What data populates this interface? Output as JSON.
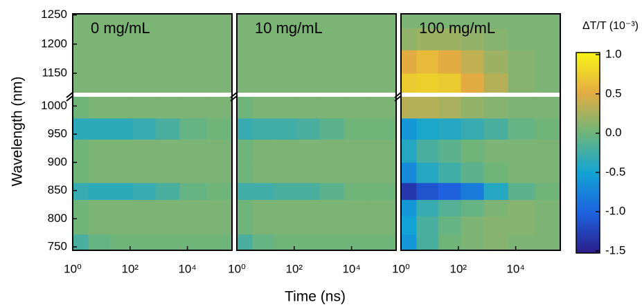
{
  "chart_data": {
    "type": "heatmap",
    "x_label": "Time (ns)",
    "y_label": "Wavelength (nm)",
    "colorbar_label": "ΔT/T (10⁻³)",
    "log_x": true,
    "xlim": [
      1,
      360000
    ],
    "xticks": [
      {
        "value": 1,
        "label": "10⁰"
      },
      {
        "value": 100,
        "label": "10²"
      },
      {
        "value": 10000,
        "label": "10⁴"
      }
    ],
    "ylim_lower": [
      744,
      1020
    ],
    "ylim_upper": [
      1113,
      1252
    ],
    "yticks": [
      750,
      800,
      850,
      900,
      950,
      1000,
      1150,
      1200,
      1250
    ],
    "clim": [
      -1.5,
      1.0
    ],
    "cticks": [
      {
        "value": 1,
        "label": "1.0"
      },
      0.5,
      {
        "value": 0,
        "label": "0.0"
      },
      -0.5,
      {
        "value": -1,
        "label": "-1.0"
      },
      -1.5
    ],
    "colormap": [
      "#2a1e8a",
      "#1e62e0",
      "#12a4d4",
      "#6fb57a",
      "#e3ac42",
      "#f8f415"
    ],
    "x": [
      1.5,
      8,
      50,
      300,
      2000,
      15000,
      150000
    ],
    "y": [
      755,
      790,
      820,
      848,
      880,
      920,
      962,
      995,
      1130,
      1170,
      1210,
      1245
    ],
    "panels": [
      {
        "title": "0 mg/mL",
        "z": [
          [
            -0.2,
            -0.05,
            0,
            0,
            0,
            0,
            0
          ],
          [
            0,
            0.05,
            0.05,
            0.05,
            0.05,
            0.05,
            0.05
          ],
          [
            0,
            0.05,
            0.05,
            0.05,
            0.05,
            0.05,
            0.05
          ],
          [
            -0.3,
            -0.35,
            -0.35,
            -0.3,
            -0.2,
            -0.05,
            0
          ],
          [
            0,
            0.05,
            0.05,
            0.05,
            0.05,
            0.05,
            0.05
          ],
          [
            0,
            0.05,
            0.05,
            0.05,
            0.05,
            0.05,
            0.05
          ],
          [
            -0.35,
            -0.35,
            -0.35,
            -0.3,
            -0.2,
            -0.05,
            0
          ],
          [
            0,
            0.05,
            0.05,
            0.05,
            0.05,
            0.05,
            0.05
          ],
          [
            0.05,
            0.05,
            0.05,
            0.05,
            0.05,
            0.05,
            0.05
          ],
          [
            0.05,
            0.05,
            0.05,
            0.05,
            0.05,
            0.05,
            0.05
          ],
          [
            0.05,
            0.05,
            0.05,
            0.05,
            0.05,
            0.05,
            0.05
          ],
          [
            0.05,
            0.05,
            0.05,
            0.05,
            0.05,
            0.05,
            0.05
          ]
        ]
      },
      {
        "title": "10 mg/mL",
        "z": [
          [
            -0.2,
            -0.05,
            0,
            0,
            0,
            0,
            0
          ],
          [
            0,
            0.05,
            0.05,
            0.05,
            0.05,
            0.05,
            0.05
          ],
          [
            0,
            0.05,
            0.05,
            0.05,
            0.05,
            0.05,
            0.05
          ],
          [
            -0.25,
            -0.25,
            -0.2,
            -0.2,
            -0.1,
            0,
            0
          ],
          [
            0,
            0.05,
            0.05,
            0.05,
            0.05,
            0.05,
            0.05
          ],
          [
            0,
            0.05,
            0.05,
            0.05,
            0.05,
            0.05,
            0.05
          ],
          [
            -0.3,
            -0.25,
            -0.25,
            -0.2,
            -0.1,
            0,
            0
          ],
          [
            0,
            0.05,
            0.05,
            0.05,
            0.05,
            0.05,
            0.05
          ],
          [
            0.05,
            0.05,
            0.05,
            0.05,
            0.05,
            0.05,
            0.05
          ],
          [
            0.05,
            0.05,
            0.05,
            0.05,
            0.05,
            0.05,
            0.05
          ],
          [
            0.05,
            0.05,
            0.05,
            0.05,
            0.05,
            0.05,
            0.05
          ],
          [
            0.05,
            0.05,
            0.05,
            0.05,
            0.05,
            0.05,
            0.05
          ]
        ]
      },
      {
        "title": "100 mg/mL",
        "z": [
          [
            -0.6,
            -0.2,
            0,
            0.05,
            0.1,
            0.05,
            0.05
          ],
          [
            -0.5,
            -0.2,
            -0.05,
            0.05,
            0.1,
            0.1,
            0.05
          ],
          [
            -0.6,
            -0.3,
            -0.15,
            -0.05,
            0.05,
            0.1,
            0.05
          ],
          [
            -1.3,
            -1.1,
            -1.0,
            -0.8,
            -0.4,
            -0.1,
            0
          ],
          [
            -0.7,
            -0.4,
            -0.25,
            -0.1,
            0,
            0.05,
            0.05
          ],
          [
            -0.4,
            -0.2,
            -0.1,
            0,
            0.05,
            0.05,
            0.05
          ],
          [
            -0.6,
            -0.45,
            -0.4,
            -0.3,
            -0.2,
            -0.05,
            0
          ],
          [
            0.3,
            0.3,
            0.25,
            0.15,
            0.1,
            0.05,
            0.05
          ],
          [
            0.7,
            0.75,
            0.7,
            0.5,
            0.3,
            0.1,
            0.05
          ],
          [
            0.5,
            0.6,
            0.5,
            0.35,
            0.2,
            0.1,
            0.05
          ],
          [
            0.15,
            0.2,
            0.2,
            0.15,
            0.1,
            0.05,
            0.05
          ],
          [
            0.05,
            0.05,
            0.05,
            0.05,
            0.05,
            0.05,
            0.05
          ]
        ]
      }
    ]
  }
}
